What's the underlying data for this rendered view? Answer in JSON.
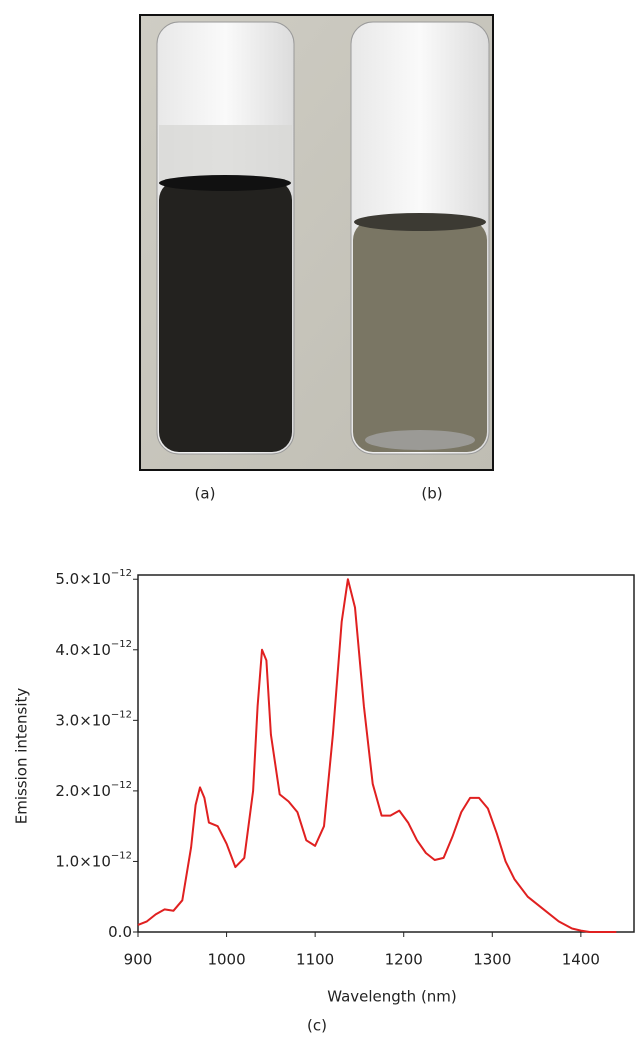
{
  "captions": [
    "(a)",
    "(b)",
    "(c)"
  ],
  "chart_data": {
    "type": "line",
    "xlabel": "Wavelength (nm)",
    "ylabel": "Emission intensity",
    "xlim": [
      900,
      1460
    ],
    "xticks": [
      900,
      1000,
      1100,
      1200,
      1300,
      1400
    ],
    "ylim": [
      0,
      5.06e-12
    ],
    "yticks": [
      {
        "value": 0,
        "label": "0.0"
      },
      {
        "value": 1e-12,
        "label": "1.0×10",
        "exponent": "−12"
      },
      {
        "value": 2e-12,
        "label": "2.0×10",
        "exponent": "−12"
      },
      {
        "value": 3e-12,
        "label": "3.0×10",
        "exponent": "−12"
      },
      {
        "value": 4e-12,
        "label": "4.0×10",
        "exponent": "−12"
      },
      {
        "value": 5e-12,
        "label": "5.0×10",
        "exponent": "−12"
      }
    ],
    "color": "#e02020",
    "x": [
      900,
      910,
      920,
      930,
      940,
      950,
      960,
      965,
      970,
      975,
      980,
      990,
      1000,
      1010,
      1020,
      1030,
      1035,
      1040,
      1045,
      1050,
      1060,
      1070,
      1080,
      1090,
      1100,
      1110,
      1120,
      1130,
      1137,
      1145,
      1155,
      1165,
      1175,
      1185,
      1195,
      1205,
      1215,
      1225,
      1235,
      1245,
      1255,
      1265,
      1275,
      1285,
      1295,
      1305,
      1315,
      1325,
      1340,
      1360,
      1375,
      1390,
      1400,
      1410,
      1440
    ],
    "values": [
      1e-13,
      1.5e-13,
      2.5e-13,
      3.2e-13,
      3e-13,
      4.5e-13,
      1.2e-12,
      1.8e-12,
      2.05e-12,
      1.9e-12,
      1.55e-12,
      1.5e-12,
      1.25e-12,
      9.2e-13,
      1.05e-12,
      2e-12,
      3.2e-12,
      4e-12,
      3.85e-12,
      2.8e-12,
      1.95e-12,
      1.85e-12,
      1.7e-12,
      1.3e-12,
      1.22e-12,
      1.5e-12,
      2.8e-12,
      4.4e-12,
      5e-12,
      4.6e-12,
      3.2e-12,
      2.1e-12,
      1.65e-12,
      1.65e-12,
      1.72e-12,
      1.55e-12,
      1.3e-12,
      1.12e-12,
      1.02e-12,
      1.05e-12,
      1.35e-12,
      1.7e-12,
      1.9e-12,
      1.9e-12,
      1.75e-12,
      1.4e-12,
      1e-12,
      7.5e-13,
      5e-13,
      3e-13,
      1.5e-13,
      5e-14,
      2e-14,
      0,
      0
    ]
  }
}
